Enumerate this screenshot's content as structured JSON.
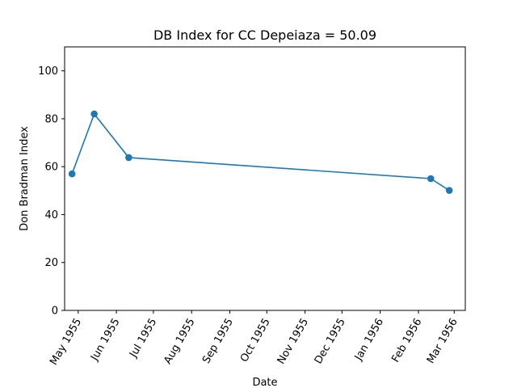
{
  "chart_data": {
    "type": "line",
    "title": "DB Index for CC Depeiaza = 50.09",
    "xlabel": "Date",
    "ylabel": "Don Bradman Index",
    "x_ticks": [
      {
        "date": "1955-05-01",
        "label": "May 1955"
      },
      {
        "date": "1955-06-01",
        "label": "Jun 1955"
      },
      {
        "date": "1955-07-01",
        "label": "Jul 1955"
      },
      {
        "date": "1955-08-01",
        "label": "Aug 1955"
      },
      {
        "date": "1955-09-01",
        "label": "Sep 1955"
      },
      {
        "date": "1955-10-01",
        "label": "Oct 1955"
      },
      {
        "date": "1955-11-01",
        "label": "Nov 1955"
      },
      {
        "date": "1955-12-01",
        "label": "Dec 1955"
      },
      {
        "date": "1956-01-01",
        "label": "Jan 1956"
      },
      {
        "date": "1956-02-01",
        "label": "Feb 1956"
      },
      {
        "date": "1956-03-01",
        "label": "Mar 1956"
      }
    ],
    "y_ticks": [
      0,
      20,
      40,
      60,
      80,
      100
    ],
    "xlim": [
      "1955-04-20",
      "1956-03-10"
    ],
    "ylim": [
      0,
      110
    ],
    "grid": false,
    "series": [
      {
        "color": "#1f77b4",
        "x": [
          "1955-04-26",
          "1955-05-14",
          "1955-06-11",
          "1956-02-11",
          "1956-02-26"
        ],
        "values": [
          57,
          82,
          63.8,
          55,
          50.09
        ]
      }
    ]
  }
}
